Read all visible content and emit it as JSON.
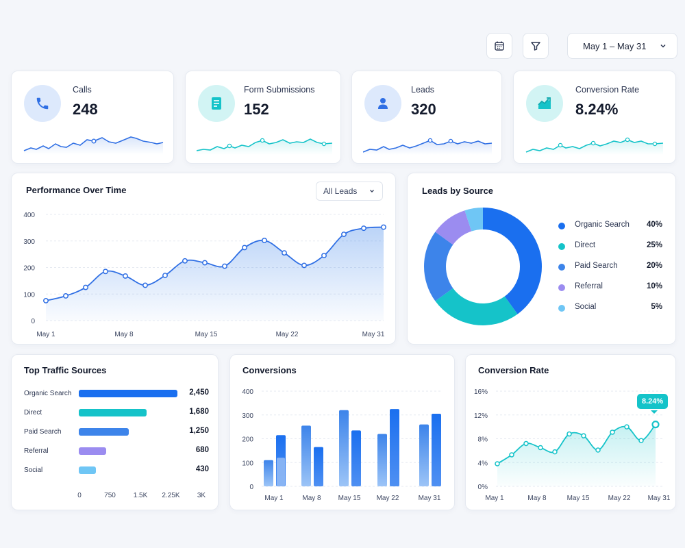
{
  "toolbar": {
    "calendar_icon": "calendar-icon",
    "filter_icon": "filter-icon",
    "date_range": "May 1 – May 31"
  },
  "stats": [
    {
      "label": "Calls",
      "value": "248",
      "icon": "phone-icon",
      "color": "#2f6fe4"
    },
    {
      "label": "Form Submissions",
      "value": "152",
      "icon": "document-icon",
      "color": "#15c3c9"
    },
    {
      "label": "Leads",
      "value": "320",
      "icon": "person-icon",
      "color": "#2f6fe4"
    },
    {
      "label": "Conversion Rate",
      "value": "8.24%",
      "icon": "trend-icon",
      "color": "#15c3c9"
    }
  ],
  "performance": {
    "title": "Performance Over Time",
    "filter": "All Leads"
  },
  "leads_by_source": {
    "title": "Leads by Source",
    "items": [
      {
        "name": "Organic Search",
        "pct": "40%",
        "color": "#1a6fef"
      },
      {
        "name": "Direct",
        "pct": "25%",
        "color": "#15c3c9"
      },
      {
        "name": "Paid Search",
        "pct": "20%",
        "color": "#3d84ea"
      },
      {
        "name": "Referral",
        "pct": "10%",
        "color": "#9b8cf0"
      },
      {
        "name": "Social",
        "pct": "5%",
        "color": "#6fc6f5"
      }
    ]
  },
  "top_traffic": {
    "title": "Top Traffic Sources",
    "rows": [
      {
        "label": "Organic Search",
        "value": "2,450",
        "color": "#1a6fef"
      },
      {
        "label": "Direct",
        "value": "1,680",
        "color": "#15c3c9"
      },
      {
        "label": "Paid Search",
        "value": "1,250",
        "color": "#3d84ea"
      },
      {
        "label": "Referral",
        "value": "680",
        "color": "#9b8cf0"
      },
      {
        "label": "Social",
        "value": "430",
        "color": "#6fc6f5"
      }
    ],
    "xticks": [
      "0",
      "750",
      "1.5K",
      "2.25K",
      "3K"
    ]
  },
  "conversions": {
    "title": "Conversions"
  },
  "conversion_rate": {
    "title": "Conversion Rate",
    "tooltip": "8.24%"
  },
  "chart_data": [
    {
      "type": "line",
      "title": "Performance Over Time",
      "x": [
        1,
        3,
        5,
        7,
        9,
        11,
        13,
        15,
        17,
        19,
        21,
        23,
        25,
        27,
        29,
        31,
        33,
        35
      ],
      "xticks": [
        "May 1",
        "May 8",
        "May 15",
        "May 22",
        "May 31"
      ],
      "yticks": [
        "0",
        "100",
        "200",
        "300",
        "400"
      ],
      "ylim": [
        0,
        400
      ],
      "values": [
        75,
        93,
        125,
        185,
        168,
        133,
        170,
        225,
        218,
        205,
        275,
        302,
        255,
        208,
        245,
        325,
        348,
        352
      ],
      "grid": true
    },
    {
      "type": "pie",
      "title": "Leads by Source",
      "categories": [
        "Organic Search",
        "Direct",
        "Paid Search",
        "Referral",
        "Social"
      ],
      "values": [
        40,
        25,
        20,
        10,
        5
      ]
    },
    {
      "type": "bar",
      "title": "Top Traffic Sources",
      "categories": [
        "Organic Search",
        "Direct",
        "Paid Search",
        "Referral",
        "Social"
      ],
      "values": [
        2450,
        1680,
        1250,
        680,
        430
      ],
      "xlim": [
        0,
        3000
      ]
    },
    {
      "type": "bar",
      "title": "Conversions",
      "categories": [
        "May 1",
        "May 8",
        "May 15",
        "May 22",
        "May 31"
      ],
      "yticks": [
        "0",
        "100",
        "200",
        "300",
        "400"
      ],
      "ylim": [
        0,
        400
      ],
      "series": [
        {
          "values": [
            110,
            255,
            320,
            220,
            260
          ]
        },
        {
          "values": [
            215,
            165,
            235,
            325,
            305
          ]
        },
        {
          "values": [
            120,
            0,
            0,
            0,
            0
          ]
        }
      ]
    },
    {
      "type": "line",
      "title": "Conversion Rate",
      "xticks": [
        "May 1",
        "May 8",
        "May 15",
        "May 22",
        "May 31"
      ],
      "yticks": [
        "0%",
        "4%",
        "8%",
        "12%",
        "16%"
      ],
      "ylim": [
        0,
        16
      ],
      "values": [
        3.8,
        5.3,
        7.2,
        6.5,
        5.8,
        8.8,
        8.5,
        6.1,
        9.1,
        10.0,
        7.7,
        10.4
      ]
    }
  ]
}
